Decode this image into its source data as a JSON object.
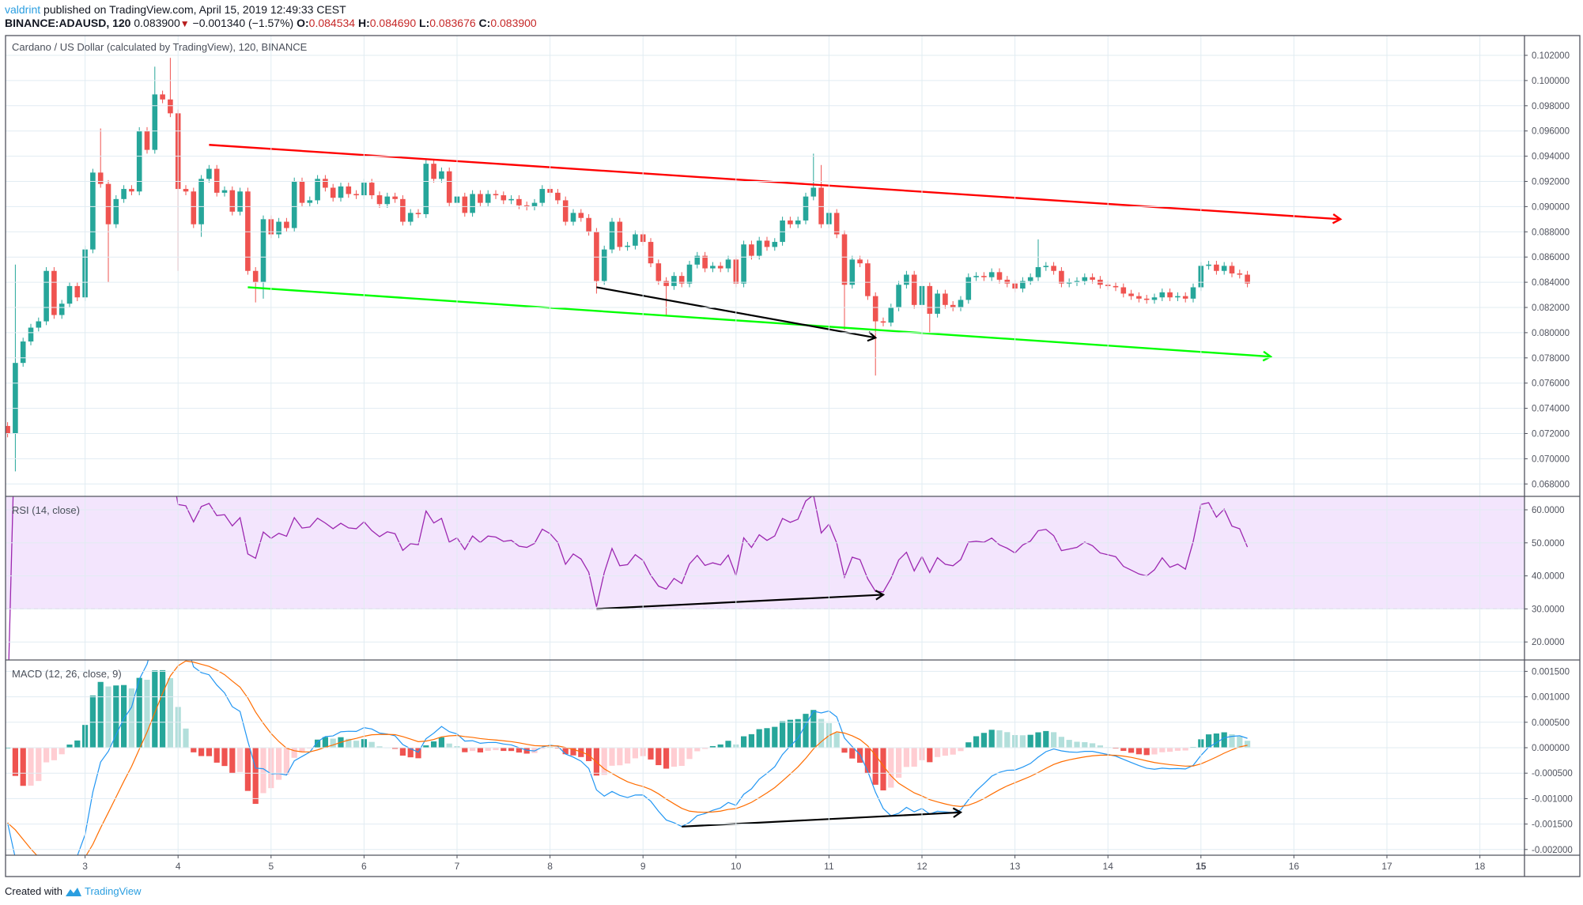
{
  "header": {
    "author": "valdrint",
    "published": "published on TradingView.com, April 15, 2019 12:49:33 CEST",
    "symbol": "BINANCE:ADAUSD, 120",
    "last": "0.083900",
    "change": "−0.001340 (−1.57%)",
    "o_label": "O:",
    "o": "0.084534",
    "h_label": "H:",
    "h": "0.084690",
    "l_label": "L:",
    "l": "0.083676",
    "c_label": "C:",
    "c": "0.083900",
    "down_icon": "triangle-down-icon"
  },
  "legends": {
    "price": "Cardano / US Dollar (calculated by TradingView), 120, BINANCE",
    "rsi": "RSI (14, close)",
    "macd": "MACD (12, 26, close, 9)"
  },
  "footer": {
    "created_with": "Created with",
    "brand": "TradingView",
    "logo_icon": "tradingview-logo-icon"
  },
  "colors": {
    "up": "#26a69a",
    "down": "#ef5350",
    "up_light": "#b2dfdb",
    "down_light": "#ffcdd2",
    "macd": "#2196f3",
    "signal": "#ff6d00",
    "rsi": "#9c27b0",
    "rsi_band": "#f3e5fd",
    "resistance": "#ff0000",
    "support": "#00ff00",
    "divergence": "#000000",
    "grid": "#e1ecf2"
  },
  "chart_data": {
    "type": "candlestick",
    "interval_hours": 2,
    "start": "2019-04-02 04:00",
    "first_open": 0.0726,
    "closes": [
      0.072,
      0.0776,
      0.0793,
      0.0804,
      0.0809,
      0.0849,
      0.0814,
      0.0823,
      0.0837,
      0.0828,
      0.0866,
      0.0927,
      0.0918,
      0.0886,
      0.0906,
      0.0914,
      0.0912,
      0.096,
      0.0945,
      0.0989,
      0.0985,
      0.0974,
      0.0914,
      0.0912,
      0.0886,
      0.0922,
      0.093,
      0.0911,
      0.0913,
      0.0896,
      0.0912,
      0.0849,
      0.084,
      0.089,
      0.0878,
      0.0888,
      0.0883,
      0.092,
      0.0903,
      0.0905,
      0.0922,
      0.0915,
      0.0907,
      0.0916,
      0.091,
      0.0909,
      0.0919,
      0.0909,
      0.0902,
      0.0908,
      0.0906,
      0.0888,
      0.0895,
      0.0894,
      0.0934,
      0.0922,
      0.0928,
      0.0903,
      0.0908,
      0.0895,
      0.091,
      0.0903,
      0.091,
      0.0909,
      0.0905,
      0.0906,
      0.0901,
      0.09,
      0.0903,
      0.0914,
      0.0911,
      0.0905,
      0.0888,
      0.0895,
      0.0891,
      0.088,
      0.0841,
      0.0866,
      0.0888,
      0.0868,
      0.0869,
      0.0878,
      0.0872,
      0.0855,
      0.0841,
      0.0837,
      0.0845,
      0.0839,
      0.0854,
      0.0861,
      0.0851,
      0.0853,
      0.0851,
      0.0858,
      0.0839,
      0.087,
      0.0861,
      0.0873,
      0.0868,
      0.0872,
      0.0889,
      0.0886,
      0.0889,
      0.0908,
      0.0915,
      0.0886,
      0.0895,
      0.0878,
      0.0838,
      0.0858,
      0.0855,
      0.0829,
      0.0809,
      0.0808,
      0.082,
      0.0838,
      0.0846,
      0.0822,
      0.0837,
      0.0815,
      0.0831,
      0.0822,
      0.082,
      0.0826,
      0.0844,
      0.0845,
      0.0844,
      0.0848,
      0.0842,
      0.0839,
      0.0835,
      0.0841,
      0.0844,
      0.0852,
      0.0853,
      0.0849,
      0.0839,
      0.084,
      0.0841,
      0.0844,
      0.0842,
      0.0838,
      0.0837,
      0.0836,
      0.0831,
      0.0829,
      0.0827,
      0.0826,
      0.0828,
      0.0832,
      0.0828,
      0.0829,
      0.0827,
      0.0836,
      0.0853,
      0.0854,
      0.0849,
      0.0853,
      0.0847,
      0.0846,
      0.0839
    ],
    "wick_extremes": [
      {
        "index": 1,
        "high": 0.0854,
        "low": 0.069
      },
      {
        "index": 12,
        "high": 0.0962
      },
      {
        "index": 13,
        "low": 0.084
      },
      {
        "index": 19,
        "high": 0.1011
      },
      {
        "index": 21,
        "high": 0.1018
      },
      {
        "index": 22,
        "low": 0.0849
      },
      {
        "index": 25,
        "low": 0.0876
      },
      {
        "index": 32,
        "low": 0.0824
      },
      {
        "index": 33,
        "low": 0.0827
      },
      {
        "index": 76,
        "low": 0.0831
      },
      {
        "index": 85,
        "low": 0.0814
      },
      {
        "index": 104,
        "high": 0.0942
      },
      {
        "index": 105,
        "high": 0.0933
      },
      {
        "index": 108,
        "low": 0.0802
      },
      {
        "index": 112,
        "low": 0.0766
      },
      {
        "index": 119,
        "low": 0.0799
      },
      {
        "index": 133,
        "high": 0.0874
      }
    ],
    "price_axis": {
      "range": [
        0.0673,
        0.1037
      ],
      "ticks": [
        "0.102000",
        "0.100000",
        "0.098000",
        "0.096000",
        "0.094000",
        "0.092000",
        "0.090000",
        "0.088000",
        "0.086000",
        "0.084000",
        "0.082000",
        "0.080000",
        "0.078000",
        "0.076000",
        "0.074000",
        "0.072000",
        "0.070000",
        "0.068000"
      ]
    },
    "rsi": {
      "period": 14,
      "band": [
        30,
        70
      ],
      "ticks": [
        "60.0000",
        "50.0000",
        "40.0000",
        "30.0000",
        "20.0000"
      ]
    },
    "macd": {
      "fast": 12,
      "slow": 26,
      "signal": 9,
      "ticks": [
        "0.001500",
        "0.001000",
        "0.000500",
        "0.000000",
        "-0.000500",
        "-0.001000",
        "-0.001500",
        "-0.002000"
      ]
    },
    "x_axis": {
      "month": "April 2019",
      "ticks": [
        "3",
        "4",
        "5",
        "6",
        "7",
        "8",
        "9",
        "10",
        "11",
        "12",
        "13",
        "14",
        "15",
        "16",
        "17",
        "18"
      ]
    },
    "annotations": [
      {
        "pane": "price",
        "kind": "resistance",
        "from": [
          "2019-04-04 08:00",
          0.0949
        ],
        "to": [
          "2019-04-16 12:00",
          0.089
        ]
      },
      {
        "pane": "price",
        "kind": "support",
        "from": [
          "2019-04-04 18:00",
          0.0836
        ],
        "to": [
          "2019-04-15 18:00",
          0.0781
        ]
      },
      {
        "pane": "price",
        "kind": "divergence",
        "from": [
          "2019-04-08 12:00",
          0.0836
        ],
        "to": [
          "2019-04-11 12:00",
          0.0796
        ]
      },
      {
        "pane": "rsi",
        "kind": "divergence",
        "from": [
          "2019-04-08 12:00",
          30.0
        ],
        "to": [
          "2019-04-11 14:00",
          34.3
        ]
      },
      {
        "pane": "macd",
        "kind": "divergence",
        "from": [
          "2019-04-09 10:00",
          -0.00155
        ],
        "to": [
          "2019-04-12 10:00",
          -0.00127
        ]
      }
    ]
  }
}
